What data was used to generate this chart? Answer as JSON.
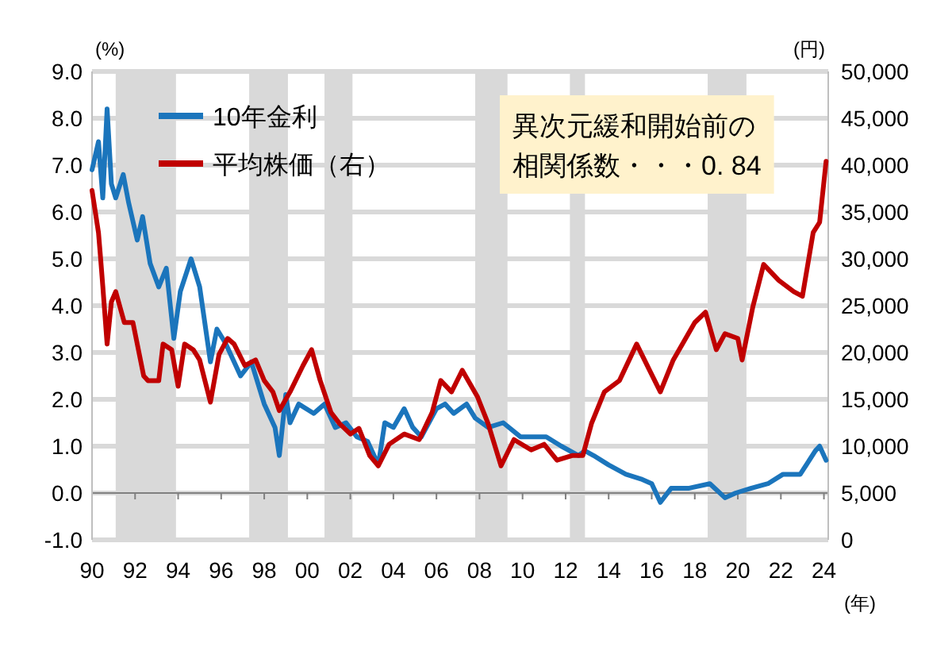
{
  "chart_data": {
    "type": "line",
    "ylabel": "(%)",
    "y2label": "(円)",
    "xlabel": "(年)",
    "xlim": [
      1990,
      2024.2
    ],
    "xticks": [
      {
        "value": 1990,
        "label": "90"
      },
      {
        "value": 1992,
        "label": "92"
      },
      {
        "value": 1994,
        "label": "94"
      },
      {
        "value": 1996,
        "label": "96"
      },
      {
        "value": 1998,
        "label": "98"
      },
      {
        "value": 2000,
        "label": "00"
      },
      {
        "value": 2002,
        "label": "02"
      },
      {
        "value": 2004,
        "label": "04"
      },
      {
        "value": 2006,
        "label": "06"
      },
      {
        "value": 2008,
        "label": "08"
      },
      {
        "value": 2010,
        "label": "10"
      },
      {
        "value": 2012,
        "label": "12"
      },
      {
        "value": 2014,
        "label": "14"
      },
      {
        "value": 2016,
        "label": "16"
      },
      {
        "value": 2018,
        "label": "18"
      },
      {
        "value": 2020,
        "label": "20"
      },
      {
        "value": 2022,
        "label": "22"
      },
      {
        "value": 2024,
        "label": "24"
      }
    ],
    "ylim": [
      -1,
      9
    ],
    "yticks": [
      {
        "value": -1,
        "label": "-1.0"
      },
      {
        "value": 0,
        "label": "0.0"
      },
      {
        "value": 1,
        "label": "1.0"
      },
      {
        "value": 2,
        "label": "2.0"
      },
      {
        "value": 3,
        "label": "3.0"
      },
      {
        "value": 4,
        "label": "4.0"
      },
      {
        "value": 5,
        "label": "5.0"
      },
      {
        "value": 6,
        "label": "6.0"
      },
      {
        "value": 7,
        "label": "7.0"
      },
      {
        "value": 8,
        "label": "8.0"
      },
      {
        "value": 9,
        "label": "9.0"
      }
    ],
    "y2lim": [
      0,
      50000
    ],
    "y2ticks": [
      0,
      {
        "value": 5000,
        "label": "5,000"
      },
      {
        "value": 10000,
        "label": "10,000"
      },
      {
        "value": 15000,
        "label": "15,000"
      },
      {
        "value": 20000,
        "label": "20,000"
      },
      {
        "value": 25000,
        "label": "25,000"
      },
      {
        "value": 30000,
        "label": "30,000"
      },
      {
        "value": 35000,
        "label": "35,000"
      },
      {
        "value": 40000,
        "label": "40,000"
      },
      {
        "value": 45000,
        "label": "45,000"
      },
      {
        "value": 50000,
        "label": "50,000"
      }
    ],
    "grid": "y",
    "legend": "top left",
    "line_style": "solid",
    "bands": [
      {
        "axis": "x",
        "from": 1991.1,
        "to": 1993.9,
        "color": "#d9d9d9"
      },
      {
        "axis": "x",
        "from": 1997.3,
        "to": 1999.1,
        "color": "#d9d9d9"
      },
      {
        "axis": "x",
        "from": 2000.8,
        "to": 2002.1,
        "color": "#d9d9d9"
      },
      {
        "axis": "x",
        "from": 2007.8,
        "to": 2009.3,
        "color": "#d9d9d9"
      },
      {
        "axis": "x",
        "from": 2012.2,
        "to": 2012.9,
        "color": "#d9d9d9"
      },
      {
        "axis": "x",
        "from": 2018.6,
        "to": 2020.4,
        "color": "#d9d9d9"
      }
    ],
    "ref_lines": [
      {
        "axis": "y",
        "value": 0,
        "color": "#808080"
      }
    ],
    "annotations": [
      "異次元緩和開始前の",
      "相関係数・・・0. 84"
    ],
    "series": [
      {
        "name": "10年金利",
        "color": "#1b75bc",
        "x": [
          1990.0,
          1990.3,
          1990.5,
          1990.7,
          1990.9,
          1991.1,
          1991.45,
          1991.7,
          1992.1,
          1992.35,
          1992.7,
          1993.1,
          1993.45,
          1993.8,
          1994.1,
          1994.6,
          1995.0,
          1995.5,
          1995.8,
          1996.2,
          1996.9,
          1997.4,
          1998.0,
          1998.5,
          1998.7,
          1999.0,
          1999.2,
          1999.6,
          2000.3,
          2000.8,
          2001.3,
          2001.8,
          2002.3,
          2002.8,
          2003.3,
          2003.6,
          2004.0,
          2004.5,
          2004.9,
          2005.3,
          2006.0,
          2006.4,
          2006.8,
          2007.4,
          2007.8,
          2008.4,
          2009.1,
          2009.9,
          2010.4,
          2011.1,
          2011.8,
          2012.6,
          2012.9,
          2013.3,
          2014.0,
          2014.8,
          2015.5,
          2016.0,
          2016.4,
          2016.9,
          2017.7,
          2018.7,
          2019.4,
          2019.9,
          2020.6,
          2021.4,
          2022.1,
          2022.9,
          2023.6,
          2023.8,
          2024.1
        ],
        "values": [
          6.9,
          7.5,
          6.3,
          8.2,
          6.6,
          6.3,
          6.8,
          6.2,
          5.4,
          5.9,
          4.9,
          4.4,
          4.8,
          3.3,
          4.3,
          5.0,
          4.4,
          2.8,
          3.5,
          3.2,
          2.5,
          2.8,
          1.9,
          1.4,
          0.8,
          2.1,
          1.5,
          1.9,
          1.7,
          1.9,
          1.4,
          1.5,
          1.2,
          1.1,
          0.6,
          1.5,
          1.4,
          1.8,
          1.4,
          1.2,
          1.8,
          1.9,
          1.7,
          1.9,
          1.6,
          1.4,
          1.5,
          1.2,
          1.2,
          1.2,
          1.0,
          0.8,
          0.9,
          0.8,
          0.6,
          0.4,
          0.3,
          0.2,
          -0.2,
          0.1,
          0.1,
          0.2,
          -0.1,
          0.0,
          0.1,
          0.2,
          0.4,
          0.4,
          0.9,
          1.0,
          0.7
        ]
      },
      {
        "name": "平均株価（右）",
        "color": "#c00000",
        "axis": "y2",
        "x": [
          1990.0,
          1990.3,
          1990.4,
          1990.5,
          1990.7,
          1990.9,
          1991.1,
          1991.5,
          1991.9,
          1992.4,
          1992.6,
          1993.1,
          1993.3,
          1993.7,
          1994.0,
          1994.3,
          1994.7,
          1995.0,
          1995.5,
          1995.9,
          1996.3,
          1996.6,
          1997.1,
          1997.6,
          1998.0,
          1998.4,
          1998.7,
          1999.2,
          1999.8,
          2000.2,
          2000.6,
          2001.1,
          2001.5,
          2002.0,
          2002.4,
          2002.9,
          2003.3,
          2003.8,
          2004.5,
          2005.2,
          2005.8,
          2006.2,
          2006.7,
          2007.2,
          2007.9,
          2008.4,
          2009.0,
          2009.6,
          2010.4,
          2011.0,
          2011.6,
          2012.3,
          2012.8,
          2013.2,
          2013.8,
          2014.5,
          2015.3,
          2015.9,
          2016.4,
          2017.0,
          2018.0,
          2018.5,
          2019.0,
          2019.4,
          2020.0,
          2020.2,
          2020.7,
          2021.2,
          2021.9,
          2022.6,
          2023.0,
          2023.5,
          2023.8,
          2024.1
        ],
        "values": [
          37300,
          32800,
          30000,
          27100,
          20900,
          25400,
          26500,
          23200,
          23200,
          17500,
          17000,
          17000,
          20900,
          20300,
          16400,
          20900,
          20300,
          19200,
          14700,
          19800,
          21500,
          20900,
          18600,
          19200,
          17000,
          15800,
          13800,
          15800,
          18600,
          20300,
          17000,
          13600,
          12400,
          11300,
          11900,
          9000,
          7900,
          10200,
          11300,
          10700,
          13600,
          17000,
          15800,
          18100,
          15300,
          12400,
          7900,
          10700,
          9600,
          10200,
          8500,
          9000,
          9000,
          12400,
          15800,
          17000,
          20900,
          18100,
          15800,
          19200,
          23200,
          24300,
          20300,
          22000,
          21500,
          19200,
          24900,
          29400,
          27700,
          26500,
          26000,
          32800,
          33900,
          40400
        ]
      }
    ]
  }
}
